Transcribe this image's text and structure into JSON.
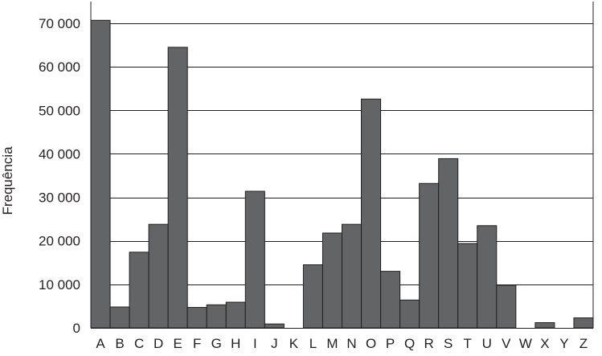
{
  "chart_data": {
    "type": "bar",
    "title": "",
    "xlabel": "",
    "ylabel": "Frequência",
    "categories": [
      "A",
      "B",
      "C",
      "D",
      "E",
      "F",
      "G",
      "H",
      "I",
      "J",
      "K",
      "L",
      "M",
      "N",
      "O",
      "P",
      "Q",
      "R",
      "S",
      "T",
      "U",
      "V",
      "W",
      "X",
      "Y",
      "Z"
    ],
    "values": [
      70700,
      4800,
      17400,
      23800,
      64500,
      4700,
      5300,
      5900,
      31400,
      900,
      0,
      14500,
      21800,
      23800,
      52600,
      13000,
      6400,
      33200,
      38900,
      19400,
      23500,
      9800,
      0,
      1200,
      0,
      2300
    ],
    "ylim": [
      0,
      75000
    ],
    "yticks": [
      0,
      10000,
      20000,
      30000,
      40000,
      50000,
      60000,
      70000
    ],
    "ytick_labels": [
      "0",
      "10 000",
      "20 000",
      "30 000",
      "40 000",
      "50 000",
      "60 000",
      "70 000"
    ],
    "grid": true,
    "legend": "none",
    "colors": {
      "bar_fill": "#636466",
      "bar_edge": "#231f20",
      "grid": "#231f20",
      "text": "#231f20"
    }
  }
}
